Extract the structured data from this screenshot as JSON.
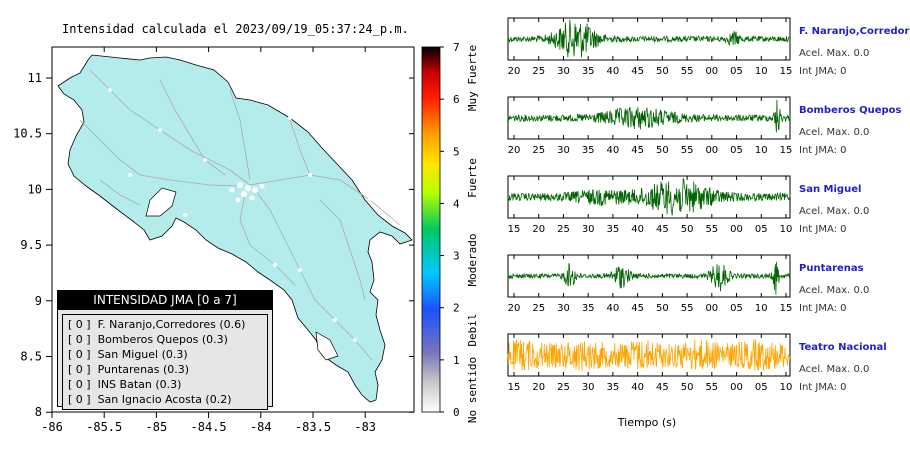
{
  "map": {
    "title": "Intensidad calculada el 2023/09/19_05:37:24_p.m.",
    "x_ticks": [
      "-86",
      "-85.5",
      "-85",
      "-84.5",
      "-84",
      "-83.5",
      "-83"
    ],
    "y_ticks": [
      "11",
      "10.5",
      "10",
      "9.5",
      "9",
      "8.5",
      "8"
    ],
    "land_color": "#b4ecec",
    "road_color": "#aaaaaa"
  },
  "legend": {
    "title": "INTENSIDAD JMA [0 a 7]",
    "items": [
      {
        "level": "[ 0 ]",
        "label": "F. Naranjo,Corredores (0.6)"
      },
      {
        "level": "[ 0 ]",
        "label": "Bomberos Quepos (0.3)"
      },
      {
        "level": "[ 0 ]",
        "label": "San Miguel (0.3)"
      },
      {
        "level": "[ 0 ]",
        "label": "Puntarenas (0.3)"
      },
      {
        "level": "[ 0 ]",
        "label": "INS Batan (0.3)"
      },
      {
        "level": "[ 0 ]",
        "label": "San Ignacio Acosta (0.2)"
      }
    ]
  },
  "colorbar": {
    "ticks": [
      "7",
      "6",
      "5",
      "4",
      "3",
      "2",
      "1",
      "0"
    ],
    "category_labels": [
      "Muy Fuerte",
      "Fuerte",
      "Moderado",
      "Debil",
      "No sentido"
    ]
  },
  "waveforms": {
    "xlabel": "Tiempo (s)",
    "stations": [
      {
        "name": "F. Naranjo,Corredores",
        "accel": "Acel. Max. 0.0",
        "int": "Int JMA: 0",
        "color": "#006400",
        "ticks": [
          "20",
          "25",
          "30",
          "35",
          "40",
          "45",
          "50",
          "55",
          "00",
          "05",
          "10",
          "15"
        ]
      },
      {
        "name": "Bomberos Quepos",
        "accel": "Acel. Max. 0.0",
        "int": "Int JMA: 0",
        "color": "#006400",
        "ticks": [
          "20",
          "25",
          "30",
          "35",
          "40",
          "45",
          "50",
          "55",
          "00",
          "05",
          "10",
          "15"
        ]
      },
      {
        "name": "San Miguel",
        "accel": "Acel. Max. 0.0",
        "int": "Int JMA: 0",
        "color": "#006400",
        "ticks": [
          "15",
          "20",
          "25",
          "30",
          "35",
          "40",
          "45",
          "50",
          "55",
          "00",
          "05",
          "10"
        ]
      },
      {
        "name": "Puntarenas",
        "accel": "Acel. Max. 0.0",
        "int": "Int JMA: 0",
        "color": "#006400",
        "ticks": [
          "20",
          "25",
          "30",
          "35",
          "40",
          "45",
          "50",
          "55",
          "00",
          "05",
          "10",
          "15"
        ]
      },
      {
        "name": "Teatro Nacional",
        "accel": "Acel. Max. 0.0",
        "int": "Int JMA: 0",
        "color": "#ffa500",
        "ticks": [
          "15",
          "20",
          "25",
          "30",
          "35",
          "40",
          "45",
          "50",
          "55",
          "00",
          "05",
          "10"
        ]
      }
    ]
  },
  "chart_data": [
    {
      "type": "heatmap",
      "title": "Intensidad calculada el 2023/09/19_05:37:24_p.m.",
      "xlim": [
        -86,
        -82.6
      ],
      "ylim": [
        8,
        11.3
      ],
      "colorbar_range": [
        0,
        7
      ],
      "colorbar_labels": [
        "No sentido",
        "Debil",
        "Moderado",
        "Fuerte",
        "Muy Fuerte"
      ]
    },
    {
      "type": "line",
      "xlabel": "Tiempo (s)",
      "series": [
        {
          "name": "F. Naranjo,Corredores"
        },
        {
          "name": "Bomberos Quepos"
        },
        {
          "name": "San Miguel"
        },
        {
          "name": "Puntarenas"
        },
        {
          "name": "Teatro Nacional"
        }
      ]
    }
  ]
}
